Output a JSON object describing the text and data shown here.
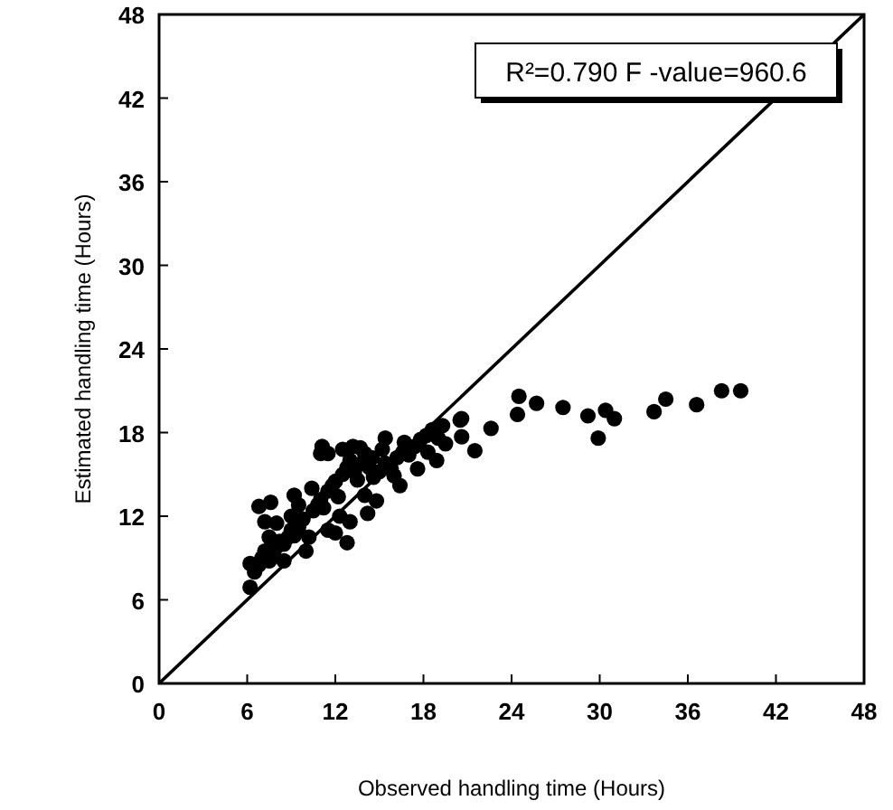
{
  "chart_data": {
    "type": "scatter",
    "xlabel": "Observed handling time (Hours)",
    "ylabel": "Estimated handling time (Hours)",
    "xlim": [
      0,
      48
    ],
    "ylim": [
      0,
      48
    ],
    "xticks": [
      0,
      6,
      12,
      18,
      24,
      30,
      36,
      42,
      48
    ],
    "yticks": [
      0,
      6,
      12,
      18,
      24,
      30,
      36,
      42,
      48
    ],
    "grid": false,
    "annotations": [
      "R²=0.790 F -value=960.6"
    ],
    "series": [
      {
        "color": "#000000",
        "marker": "circle",
        "x": [
          24.5,
          25.7,
          24.4,
          27.5,
          29.2,
          30.4,
          31.0,
          29.9,
          33.7,
          34.5,
          36.6,
          38.3,
          39.6,
          22.6,
          21.5,
          20.6,
          11.1,
          11.5,
          13.2,
          15.4,
          16.7,
          19.3,
          20.5,
          20.6,
          6.8,
          7.6,
          7.2,
          6.2,
          6.2,
          12.8,
          14.2,
          14.8,
          18.3,
          18.9,
          16.4,
          16.0,
          17.6,
          6.5,
          6.8,
          7,
          7.2,
          7.5,
          7.8,
          8,
          8.2,
          8.5,
          8.8,
          9,
          9.2,
          9.5,
          9.8,
          10.5,
          10.8,
          11,
          11.2,
          11.5,
          11.8,
          12,
          12.2,
          12.5,
          12.8,
          13,
          13.3,
          13.5,
          13.8,
          14,
          14.3,
          14.6,
          15,
          15.4,
          15.8,
          16.2,
          16.6,
          17,
          17.4,
          17.8,
          18.2,
          18.6,
          19,
          19.5,
          9.5,
          9.2,
          10.4,
          11.5,
          12.3,
          10.0,
          8.5,
          7.5,
          8.0,
          9.0,
          11,
          12.5,
          13.7,
          14.5,
          15.2,
          12.0,
          13.0,
          14.0,
          10.2
        ],
        "values": [
          20.6,
          20.1,
          19.3,
          19.8,
          19.2,
          19.6,
          19.0,
          17.6,
          19.5,
          20.4,
          20.0,
          21.0,
          21.0,
          18.3,
          16.7,
          19.0,
          17.0,
          16.5,
          17.0,
          17.6,
          17.3,
          18.5,
          18.9,
          17.7,
          12.7,
          13.0,
          11.6,
          8.6,
          6.9,
          10.1,
          12.2,
          13.1,
          16.6,
          16.0,
          14.2,
          14.9,
          15.4,
          8,
          8.5,
          9,
          9.5,
          8.8,
          9.2,
          9.8,
          10.2,
          10,
          10.5,
          11,
          10.6,
          11.2,
          11.8,
          12.4,
          12.8,
          13.2,
          12.6,
          13.8,
          14.2,
          14.5,
          13.4,
          15,
          15.5,
          16,
          15.2,
          14.6,
          15.8,
          16.5,
          15.5,
          14.8,
          15.2,
          15.8,
          15.4,
          16.2,
          16.6,
          16.4,
          17.0,
          17.5,
          17.8,
          18.2,
          17.6,
          17.2,
          12.8,
          13.5,
          14.0,
          11.0,
          12.0,
          9.5,
          8.8,
          10.5,
          11.5,
          12.0,
          16.5,
          16.8,
          16.9,
          16.2,
          16.8,
          10.8,
          11.6,
          13.5,
          10.5
        ]
      },
      {
        "type": "line",
        "color": "#000000",
        "x": [
          0,
          48
        ],
        "values": [
          0,
          48
        ],
        "marker": "none"
      }
    ]
  }
}
